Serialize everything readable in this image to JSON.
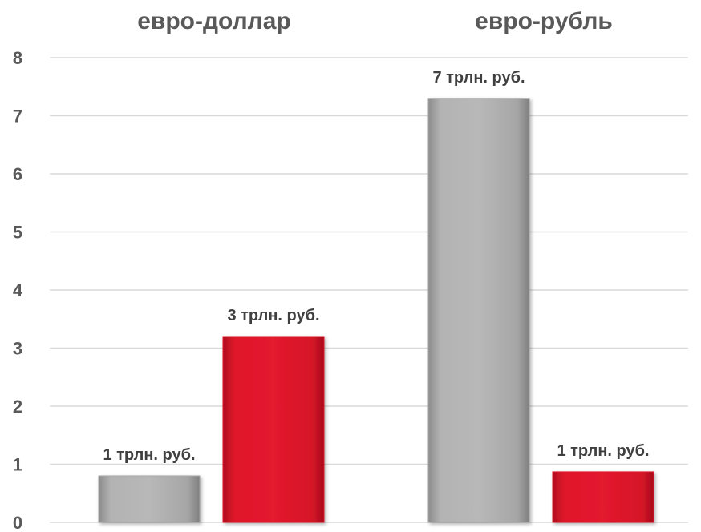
{
  "chart_data": {
    "type": "bar",
    "categories": [
      "евро-доллар",
      "евро-рубль"
    ],
    "series": [
      {
        "color": "#a6a6a6",
        "values": [
          0.8,
          7.3
        ],
        "labels": [
          "1 трлн. руб.",
          "7 трлн. руб."
        ]
      },
      {
        "color": "#e0162b",
        "values": [
          3.2,
          0.87
        ],
        "labels": [
          "3 трлн. руб.",
          "1 трлн. руб."
        ]
      }
    ],
    "yticks": [
      "0",
      "1",
      "2",
      "3",
      "4",
      "5",
      "6",
      "7",
      "8"
    ],
    "ylim": [
      0,
      8
    ],
    "grid": true,
    "legend": "none"
  }
}
